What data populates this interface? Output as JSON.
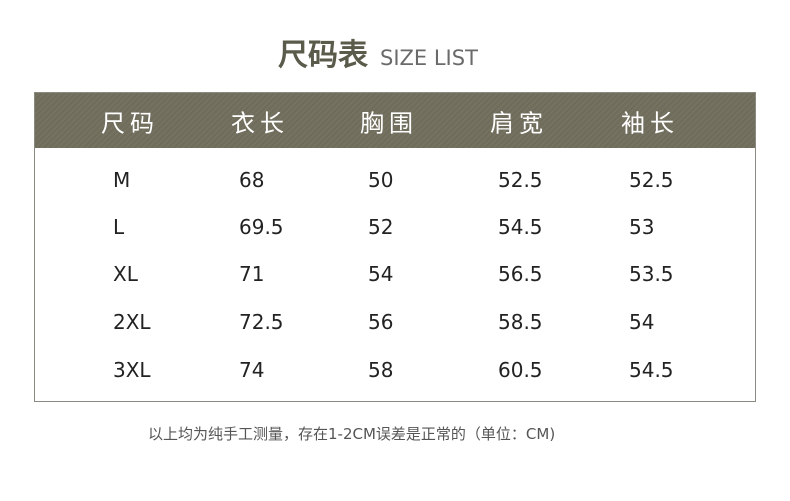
{
  "title": {
    "cn": "尺码表",
    "en": "SIZE LIST"
  },
  "header_color": "#6f6c5b",
  "columns": [
    "尺码",
    "衣长",
    "胸围",
    "肩宽",
    "袖长"
  ],
  "rows": [
    [
      "M",
      "68",
      "50",
      "52.5",
      "52.5"
    ],
    [
      "L",
      "69.5",
      "52",
      "54.5",
      "53"
    ],
    [
      "XL",
      "71",
      "54",
      "56.5",
      "53.5"
    ],
    [
      "2XL",
      "72.5",
      "56",
      "58.5",
      "54"
    ],
    [
      "3XL",
      "74",
      "58",
      "60.5",
      "54.5"
    ]
  ],
  "note": "以上均为纯手工测量，存在1-2CM误差是正常的（单位：CM)"
}
